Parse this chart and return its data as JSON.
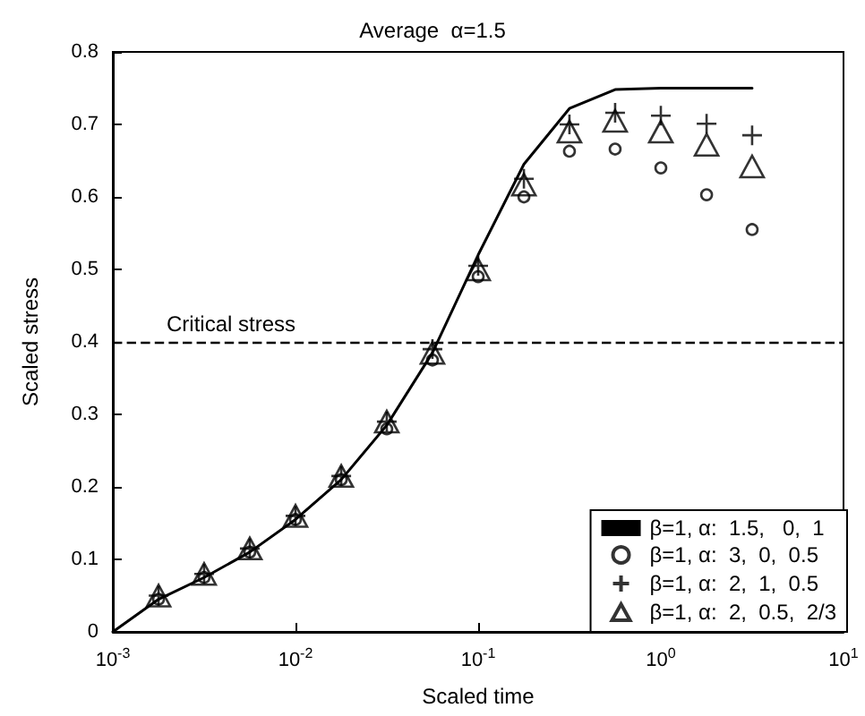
{
  "chart_data": {
    "type": "line",
    "title": "Average  α=1.5",
    "xlabel": "Scaled time",
    "ylabel": "Scaled stress",
    "xlim": [
      0.001,
      10
    ],
    "xticks": [
      {
        "value": 0.001,
        "label": "10$^{-3}$"
      },
      {
        "value": 0.01,
        "label": "10$^{-2}$"
      },
      {
        "value": 0.1,
        "label": "10$^{-1}$"
      },
      {
        "value": 1,
        "label": "10$^{0}$"
      },
      {
        "value": 10,
        "label": "10$^{1}$"
      }
    ],
    "ylim": [
      0,
      0.8
    ],
    "yticks": [
      0,
      0.1,
      0.2,
      0.3,
      0.4,
      0.5,
      0.6,
      0.7,
      0.8
    ],
    "log": "x",
    "grid": false,
    "legend": "bottom right",
    "ref_lines": [
      {
        "axis": "y",
        "value": 0.4,
        "label": "Critical stress",
        "line_style": "dashed",
        "color": "#000000"
      }
    ],
    "series": [
      {
        "name": "β=1, α:  1.5,   0,  1",
        "marker": "none",
        "line_style": "solid",
        "color": "#000000",
        "x": [
          0.001,
          0.00178,
          0.00316,
          0.00562,
          0.01,
          0.0178,
          0.0316,
          0.0562,
          0.1,
          0.178,
          0.316,
          0.562,
          1,
          1.78,
          3.16
        ],
        "values": [
          0,
          0.045,
          0.075,
          0.11,
          0.155,
          0.21,
          0.285,
          0.385,
          0.52,
          0.645,
          0.722,
          0.748,
          0.75,
          0.75,
          0.75
        ]
      },
      {
        "name": "β=1, α:  3,  0,  0.5",
        "type": "scatter",
        "marker": "circle",
        "color": "#000000",
        "x": [
          0.00178,
          0.00316,
          0.00562,
          0.01,
          0.0178,
          0.0316,
          0.0562,
          0.1,
          0.178,
          0.316,
          0.562,
          1,
          1.78,
          3.16
        ],
        "values": [
          0.045,
          0.075,
          0.11,
          0.155,
          0.21,
          0.28,
          0.375,
          0.49,
          0.6,
          0.663,
          0.666,
          0.64,
          0.603,
          0.555
        ]
      },
      {
        "name": "β=1, α:  2,  1,  0.5",
        "type": "scatter",
        "marker": "cross",
        "color": "#000000",
        "x": [
          0.00178,
          0.00316,
          0.00562,
          0.01,
          0.0178,
          0.0316,
          0.0562,
          0.1,
          0.178,
          0.316,
          0.562,
          1,
          1.78,
          3.16
        ],
        "values": [
          0.05,
          0.08,
          0.115,
          0.16,
          0.215,
          0.29,
          0.39,
          0.505,
          0.625,
          0.7,
          0.716,
          0.712,
          0.701,
          0.685
        ]
      },
      {
        "name": "β=1, α:  2,  0.5,  2/3",
        "type": "scatter",
        "marker": "triangle",
        "color": "#000000",
        "x": [
          0.00178,
          0.00316,
          0.00562,
          0.01,
          0.0178,
          0.0316,
          0.0562,
          0.1,
          0.178,
          0.316,
          0.562,
          1,
          1.78,
          3.16
        ],
        "values": [
          0.05,
          0.08,
          0.115,
          0.16,
          0.215,
          0.29,
          0.385,
          0.5,
          0.617,
          0.69,
          0.705,
          0.69,
          0.672,
          0.642
        ]
      }
    ]
  }
}
